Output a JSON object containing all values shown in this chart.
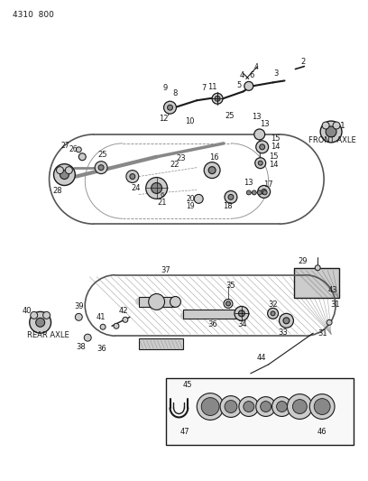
{
  "page_id": "4310  800",
  "background_color": "#ffffff",
  "front_axle_label": "FRONT AXLE",
  "rear_axle_label": "REAR AXLE",
  "line_color": "#1a1a1a",
  "light_gray": "#cccccc",
  "mid_gray": "#888888",
  "dark_gray": "#555555"
}
